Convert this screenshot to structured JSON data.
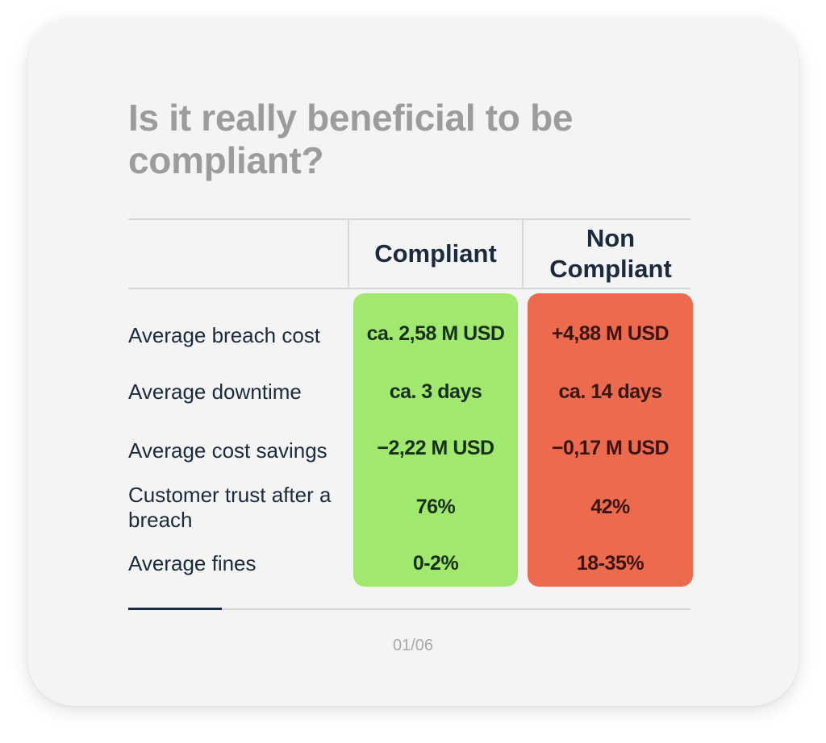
{
  "slide": {
    "title": "Is it really beneficial to be compliant?",
    "page_indicator": "01/06",
    "progress": 0.1667
  },
  "table": {
    "columns": [
      {
        "label": "Compliant",
        "color": "#a1e86f"
      },
      {
        "label": "Non Compliant",
        "color": "#ec6a4e"
      }
    ],
    "rows": [
      {
        "label": "Average breach cost",
        "compliant": "ca. 2,58 M USD",
        "non_compliant": "+4,88 M USD"
      },
      {
        "label": "Average downtime",
        "compliant": "ca. 3 days",
        "non_compliant": "ca. 14 days"
      },
      {
        "label": "Average cost savings",
        "compliant": "−2,22 M USD",
        "non_compliant": "−0,17 M USD"
      },
      {
        "label": "Customer trust after a breach",
        "compliant": "76%",
        "non_compliant": "42%"
      },
      {
        "label": "Average fines",
        "compliant": "0-2%",
        "non_compliant": "18-35%"
      }
    ]
  },
  "colors": {
    "title": "#9c9c9c",
    "text": "#1b2b3d",
    "card": "#f4f4f4"
  }
}
